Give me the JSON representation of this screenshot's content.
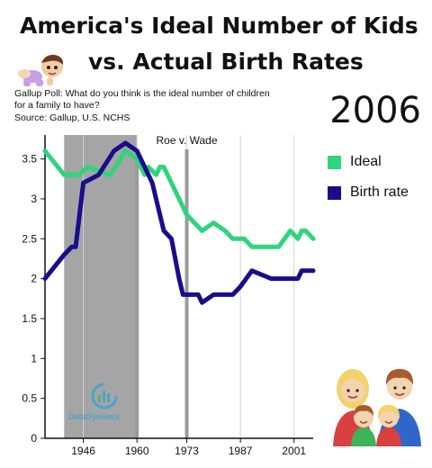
{
  "header": {
    "title_line1": "America's Ideal Number of Kids",
    "title_line2": "vs. Actual Birth Rates",
    "question": "Gallup Poll: What do you think is the ideal number of children for a family to have?",
    "source": "Source: Gallup, U.S. NCHS",
    "current_year": "2006"
  },
  "branding": {
    "logo_text": "DataDynamix"
  },
  "chart_data": {
    "type": "line",
    "x_range": [
      1936,
      2006
    ],
    "ylim": [
      0,
      3.8
    ],
    "xticks": [
      1946,
      1960,
      1973,
      1987,
      2001
    ],
    "xtick_labels": [
      "1946",
      "1960",
      "1973",
      "1987",
      "2001"
    ],
    "yticks": [
      0,
      0.5,
      1,
      1.5,
      2,
      2.5,
      3,
      3.5
    ],
    "ytick_labels": [
      "0",
      "0.5",
      "1",
      "1.5",
      "2",
      "2.5",
      "3",
      "3.5"
    ],
    "grid": "vertical",
    "legend_position": "right",
    "shaded_span": {
      "from": 1941,
      "to": 1960
    },
    "vlines": [
      {
        "x": 1960
      },
      {
        "x": 1973,
        "label": "Roe v. Wade"
      }
    ],
    "series": [
      {
        "name": "Ideal",
        "color": "#2fd47e",
        "x": [
          1936,
          1941,
          1945,
          1947,
          1953,
          1957,
          1960,
          1962,
          1963,
          1965,
          1966,
          1967,
          1968,
          1971,
          1973,
          1977,
          1980,
          1983,
          1985,
          1986,
          1988,
          1990,
          1993,
          1996,
          1997,
          2000,
          2002,
          2003,
          2004,
          2006
        ],
        "y": [
          3.6,
          3.3,
          3.3,
          3.4,
          3.3,
          3.6,
          3.5,
          3.3,
          3.4,
          3.3,
          3.4,
          3.4,
          3.3,
          3.0,
          2.8,
          2.6,
          2.7,
          2.6,
          2.5,
          2.5,
          2.5,
          2.4,
          2.4,
          2.4,
          2.4,
          2.6,
          2.5,
          2.6,
          2.6,
          2.5
        ]
      },
      {
        "name": "Birth rate",
        "color": "#190d8c",
        "x": [
          1936,
          1941,
          1943,
          1944,
          1946,
          1950,
          1954,
          1957,
          1960,
          1962,
          1964,
          1966,
          1967,
          1969,
          1971,
          1972,
          1976,
          1977,
          1980,
          1983,
          1985,
          1987,
          1990,
          1995,
          2000,
          2002,
          2003,
          2006
        ],
        "y": [
          2.0,
          2.3,
          2.4,
          2.4,
          3.2,
          3.3,
          3.6,
          3.7,
          3.6,
          3.4,
          3.2,
          2.8,
          2.6,
          2.5,
          2.0,
          1.8,
          1.8,
          1.7,
          1.8,
          1.8,
          1.8,
          1.9,
          2.1,
          2.0,
          2.0,
          2.0,
          2.1,
          2.1
        ]
      }
    ]
  }
}
